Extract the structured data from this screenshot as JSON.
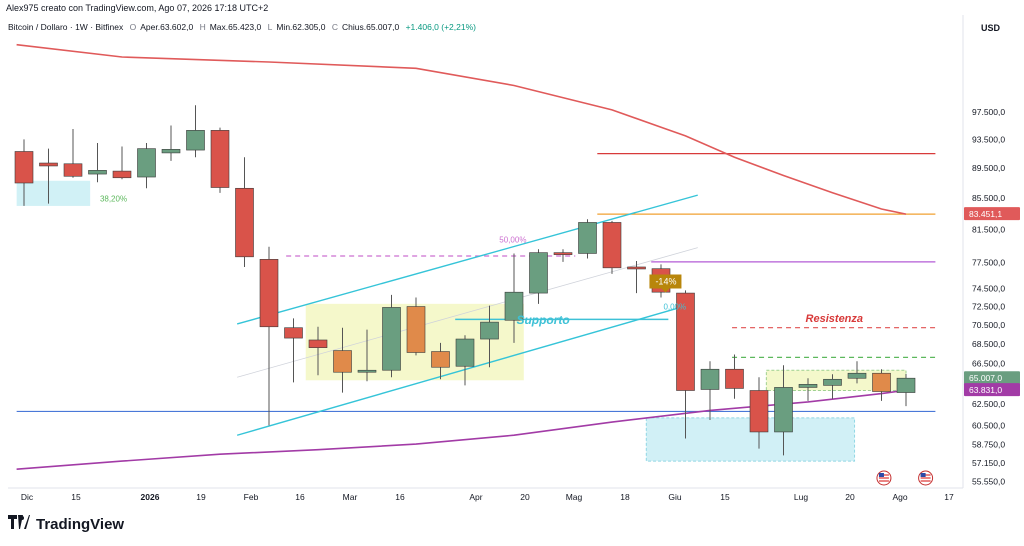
{
  "header": {
    "attribution": "Alex975 creato con TradingView.com, Ago 07, 2026 17:18 UTC+2"
  },
  "symbol_line": {
    "symbol": "Bitcoin / Dollaro · 1W · Bitfinex",
    "open_label": "O",
    "open_value": "Aper.63.602,0",
    "high_label": "H",
    "high_value": "Max.65.423,0",
    "low_label": "L",
    "low_value": "Min.62.305,0",
    "close_label": "C",
    "close_value": "Chius.65.007,0",
    "change": "+1.406,0 (+2,21%)"
  },
  "logo": {
    "text": "TradingView"
  },
  "colors": {
    "up": "#6a9e80",
    "down": "#d9534a",
    "neutral": "#e08a4a",
    "ma_red": "#e05a5a",
    "ma_purple": "#a23ba6",
    "channel": "#35c4d8",
    "support": "#3ec1d6",
    "resistance": "#d83a3a",
    "zone_yellow": "#f3f7c2",
    "zone_cyan": "#c9eef5",
    "axis_text": "#131722"
  },
  "chart_data": {
    "type": "candlestick",
    "currency": "USD",
    "y_tick_labels": [
      "97.500,0",
      "93.500,0",
      "89.500,0",
      "85.500,0",
      "81.500,0",
      "77.500,0",
      "74.500,0",
      "72.500,0",
      "70.500,0",
      "68.500,0",
      "66.500,0",
      "62.500,0",
      "60.500,0",
      "58.750,0",
      "57.150,0",
      "55.550,0"
    ],
    "x_tick_labels": [
      "Dic",
      "15",
      "2026",
      "19",
      "Feb",
      "16",
      "Mar",
      "16",
      "Apr",
      "20",
      "Mag",
      "18",
      "Giu",
      "15",
      "Lug",
      "20",
      "Ago",
      "17"
    ],
    "x_tick_bold": [
      false,
      false,
      true,
      false,
      false,
      false,
      false,
      false,
      false,
      false,
      false,
      false,
      false,
      false,
      false,
      false,
      false,
      false
    ],
    "candles": [
      {
        "week": 0,
        "o": 91800,
        "h": 93500,
        "l": 84500,
        "c": 87500
      },
      {
        "week": 1,
        "o": 90200,
        "h": 92200,
        "l": 84800,
        "c": 89800
      },
      {
        "week": 2,
        "o": 90100,
        "h": 95000,
        "l": 88200,
        "c": 88400
      },
      {
        "week": 3,
        "o": 88700,
        "h": 93000,
        "l": 87600,
        "c": 89200
      },
      {
        "week": 4,
        "o": 89100,
        "h": 92500,
        "l": 88000,
        "c": 88200
      },
      {
        "week": 5,
        "o": 88300,
        "h": 93000,
        "l": 86800,
        "c": 92200
      },
      {
        "week": 6,
        "o": 91600,
        "h": 95500,
        "l": 90500,
        "c": 92100
      },
      {
        "week": 7,
        "o": 92000,
        "h": 98500,
        "l": 91000,
        "c": 94800
      },
      {
        "week": 8,
        "o": 94800,
        "h": 95200,
        "l": 86200,
        "c": 86900
      },
      {
        "week": 9,
        "o": 86800,
        "h": 91000,
        "l": 77000,
        "c": 78200
      },
      {
        "week": 10,
        "o": 77900,
        "h": 79400,
        "l": 60500,
        "c": 70300
      },
      {
        "week": 11,
        "o": 70200,
        "h": 71200,
        "l": 64600,
        "c": 69100
      },
      {
        "week": 12,
        "o": 68900,
        "h": 70300,
        "l": 65300,
        "c": 68100
      },
      {
        "week": 13,
        "o": 67800,
        "h": 70200,
        "l": 63600,
        "c": 65600
      },
      {
        "week": 14,
        "o": 65700,
        "h": 70000,
        "l": 64700,
        "c": 65800
      },
      {
        "week": 15,
        "o": 65800,
        "h": 73800,
        "l": 65100,
        "c": 72400
      },
      {
        "week": 16,
        "o": 72500,
        "h": 73500,
        "l": 67300,
        "c": 67600
      },
      {
        "week": 17,
        "o": 67700,
        "h": 68600,
        "l": 64900,
        "c": 66100
      },
      {
        "week": 18,
        "o": 66200,
        "h": 69400,
        "l": 64300,
        "c": 69000
      },
      {
        "week": 19,
        "o": 69000,
        "h": 72600,
        "l": 66100,
        "c": 70800
      },
      {
        "week": 20,
        "o": 71000,
        "h": 78600,
        "l": 68600,
        "c": 74100
      },
      {
        "week": 21,
        "o": 74000,
        "h": 79100,
        "l": 72800,
        "c": 78700
      },
      {
        "week": 22,
        "o": 78700,
        "h": 79100,
        "l": 77600,
        "c": 78600
      },
      {
        "week": 23,
        "o": 78600,
        "h": 82800,
        "l": 78000,
        "c": 82400
      },
      {
        "week": 24,
        "o": 82400,
        "h": 82600,
        "l": 76200,
        "c": 76900
      },
      {
        "week": 25,
        "o": 77000,
        "h": 77700,
        "l": 74000,
        "c": 76800
      },
      {
        "week": 26,
        "o": 76800,
        "h": 77300,
        "l": 73500,
        "c": 74100
      },
      {
        "week": 27,
        "o": 74000,
        "h": 74300,
        "l": 59300,
        "c": 63800
      },
      {
        "week": 28,
        "o": 63900,
        "h": 66700,
        "l": 61000,
        "c": 65900
      },
      {
        "week": 29,
        "o": 65900,
        "h": 67400,
        "l": 63000,
        "c": 64000
      },
      {
        "week": 30,
        "o": 63800,
        "h": 65100,
        "l": 58400,
        "c": 59900
      },
      {
        "week": 31,
        "o": 59900,
        "h": 66300,
        "l": 57800,
        "c": 64100
      },
      {
        "week": 32,
        "o": 64100,
        "h": 65000,
        "l": 62800,
        "c": 64400
      },
      {
        "week": 33,
        "o": 64300,
        "h": 65400,
        "l": 63000,
        "c": 64900
      },
      {
        "week": 34,
        "o": 65000,
        "h": 66700,
        "l": 64500,
        "c": 65500
      },
      {
        "week": 35,
        "o": 65500,
        "h": 65900,
        "l": 62800,
        "c": 63700
      },
      {
        "week": 36,
        "o": 63602,
        "h": 65423,
        "l": 62305,
        "c": 65007
      }
    ],
    "moving_averages": [
      {
        "color": "red",
        "points": [
          [
            -0.3,
            108000
          ],
          [
            4,
            106000
          ],
          [
            10,
            105200
          ],
          [
            16,
            104200
          ],
          [
            20,
            101500
          ],
          [
            24,
            97800
          ],
          [
            27,
            94000
          ],
          [
            29,
            91000
          ],
          [
            31,
            88500
          ],
          [
            33,
            86200
          ],
          [
            35,
            84100
          ],
          [
            36,
            83451
          ]
        ]
      },
      {
        "color": "purple",
        "points": [
          [
            -0.3,
            56600
          ],
          [
            4,
            57300
          ],
          [
            8,
            57900
          ],
          [
            12,
            58300
          ],
          [
            16,
            58800
          ],
          [
            20,
            59600
          ],
          [
            24,
            60800
          ],
          [
            28,
            61900
          ],
          [
            32,
            62700
          ],
          [
            35,
            63500
          ],
          [
            36,
            63831
          ]
        ]
      }
    ],
    "channel": {
      "upper": [
        [
          8.7,
          70600
        ],
        [
          27.5,
          85900
        ]
      ],
      "lower": [
        [
          8.7,
          59600
        ],
        [
          27.3,
          72800
        ]
      ],
      "mid": [
        [
          8.7,
          65100
        ],
        [
          27.5,
          79300
        ]
      ]
    },
    "horizontal_levels": [
      {
        "name": "level-91500",
        "value": 91500,
        "from": 23.4,
        "to": 37.2,
        "style": "solid",
        "color": "#d83a3a"
      },
      {
        "name": "level-83451",
        "value": 83451,
        "from": 23.4,
        "to": 37.2,
        "style": "solid",
        "color": "#f0a030"
      },
      {
        "name": "level-77600",
        "value": 77600,
        "from": 25.6,
        "to": 37.2,
        "style": "solid",
        "color": "#b35bd6"
      },
      {
        "name": "level-78300",
        "value": 78300,
        "from": 10.7,
        "to": 22.5,
        "style": "dashed",
        "color": "#cc6fd0"
      },
      {
        "name": "level-70200",
        "value": 70200,
        "from": 28.9,
        "to": 37.2,
        "style": "dashed",
        "color": "#e05050"
      },
      {
        "name": "level-67100",
        "value": 67100,
        "from": 28.9,
        "to": 37.2,
        "style": "dashed",
        "color": "#5cb85c"
      },
      {
        "name": "level-61800",
        "value": 61800,
        "from": -0.3,
        "to": 37.2,
        "style": "solid",
        "color": "#4a78d8"
      },
      {
        "name": "level-supporto",
        "value": 71100,
        "from": 17.6,
        "to": 26.3,
        "style": "solid",
        "color": "#3ec1d6"
      }
    ],
    "zones": [
      {
        "name": "zone-left-cyan",
        "x0": -0.3,
        "x1": 2.7,
        "y0": 84500,
        "y1": 87800,
        "color": "#c9eef5",
        "border": "none"
      },
      {
        "name": "zone-yellow-main",
        "x0": 11.5,
        "x1": 20.4,
        "y0": 64800,
        "y1": 72800,
        "color": "#f3f7c2",
        "border": "none"
      },
      {
        "name": "zone-cyan-bottom",
        "x0": 25.4,
        "x1": 33.9,
        "y0": 57300,
        "y1": 61200,
        "color": "#c9eef5",
        "border": "#7fd0e0"
      },
      {
        "name": "zone-yellow-right",
        "x0": 30.3,
        "x1": 36.0,
        "y0": 63800,
        "y1": 65800,
        "color": "#f3f7c2",
        "border": "#8fc97f"
      }
    ],
    "annotations": [
      {
        "name": "label-38-20",
        "text": "38,20%",
        "x": 3.1,
        "y": 85100,
        "color": "#5cb85c",
        "size": 8
      },
      {
        "name": "label-50-00",
        "text": "50,00%",
        "x": 19.4,
        "y": 79900,
        "color": "#cc6fd0",
        "size": 8
      },
      {
        "name": "label-0-00",
        "text": "0,00%",
        "x": 26.1,
        "y": 72200,
        "color": "#3ec1d6",
        "size": 8
      },
      {
        "name": "label-supporto",
        "text": "Supporto",
        "x": 20.1,
        "y": 70600,
        "color": "#3ec1d6",
        "size": 12,
        "italic": true,
        "bold": true
      },
      {
        "name": "label-resistenza",
        "text": "Resistenza",
        "x": 31.9,
        "y": 70800,
        "color": "#d83a3a",
        "size": 11,
        "italic": true,
        "bold": true
      }
    ],
    "price_badges": [
      {
        "name": "badge-83451",
        "text": "83.451,1",
        "value": 83451,
        "color": "#e05a5a"
      },
      {
        "name": "badge-65007",
        "text": "65.007,0",
        "value": 65007,
        "color": "#6a9e80"
      },
      {
        "name": "badge-63831",
        "text": "63.831,0",
        "value": 63831,
        "color": "#a23ba6"
      }
    ],
    "callout": {
      "text": "-14%",
      "x": 26.1,
      "y": 75200,
      "color": "#b8860b"
    },
    "flags": [
      {
        "x": 35.1
      },
      {
        "x": 36.8
      }
    ],
    "flag_icon": "us-flag-icon",
    "y_scale": "log"
  }
}
